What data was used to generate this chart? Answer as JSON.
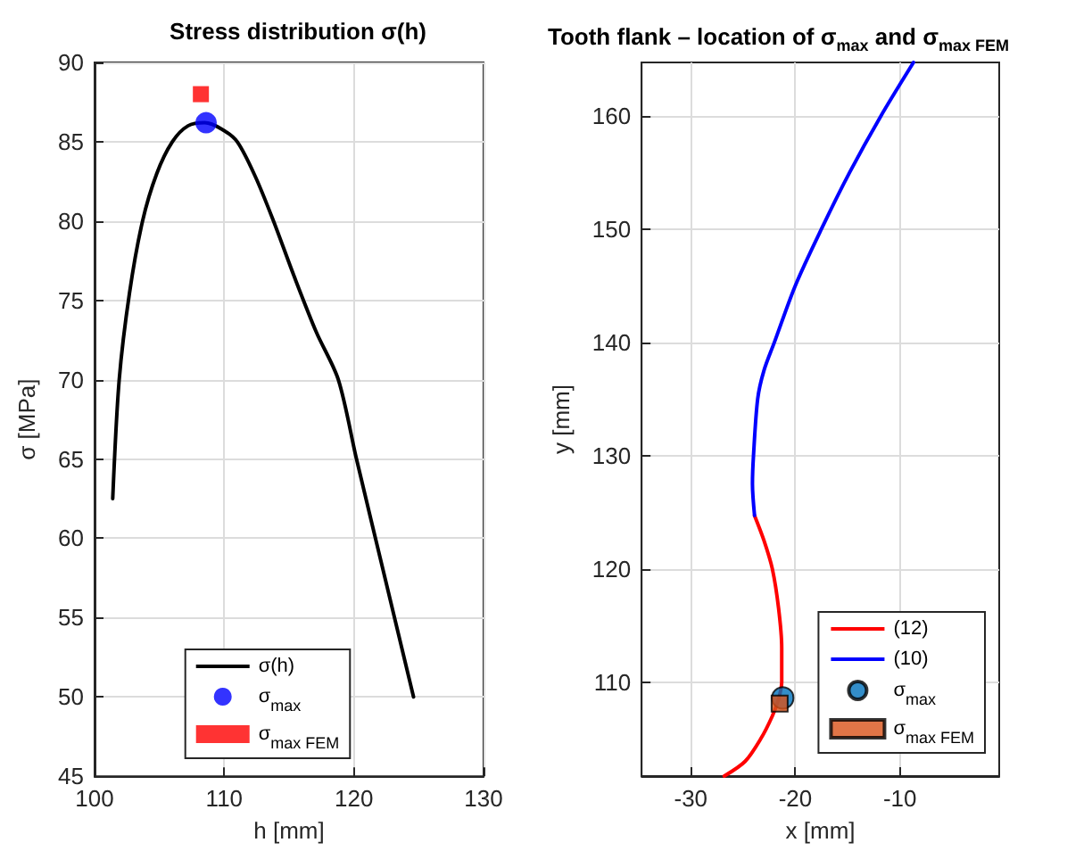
{
  "chart_data": [
    {
      "type": "line",
      "title": "Stress distribution σ(h)",
      "xlabel": "h [mm]",
      "ylabel": "σ [MPa]",
      "xlim": [
        100,
        130
      ],
      "xticks": [
        100,
        110,
        120,
        130
      ],
      "ylim": [
        45,
        90
      ],
      "yticks": [
        45,
        50,
        55,
        60,
        65,
        70,
        75,
        80,
        85,
        90
      ],
      "grid": true,
      "legend": "bottom",
      "series": [
        {
          "name": "σ(h)",
          "type": "line",
          "color": "#000000",
          "marker": "none",
          "line_style": "solid",
          "x": [
            101.4,
            101.9,
            102.7,
            103.7,
            104.8,
            106.0,
            107.2,
            108.5,
            109.8,
            111.0,
            112.4,
            113.8,
            115.4,
            117.1,
            118.8,
            120.2,
            122.4,
            124.6
          ],
          "values": [
            62.5,
            70,
            75.5,
            80,
            83,
            85,
            86,
            86.2,
            85.8,
            85,
            82.8,
            80,
            76.5,
            73,
            70,
            65,
            57.5,
            50
          ]
        },
        {
          "name": "σ$_{max}$",
          "type": "scatter",
          "color": "#0000ff",
          "marker": "circle",
          "x": [
            108.6
          ],
          "values": [
            86.2
          ]
        },
        {
          "name": "σ$_{max FEM}$",
          "type": "scatter",
          "color": "#ff0000",
          "marker": "square",
          "x": [
            108.2
          ],
          "values": [
            88.0
          ]
        }
      ]
    },
    {
      "type": "line",
      "title": "Tooth flank – location of σ$_{max}$ and σ$_{max FEM}$",
      "xlabel": "x [mm]",
      "ylabel": "y [mm]",
      "xlim": [
        -34.7,
        -0.5
      ],
      "xticks": [
        -30,
        -20,
        -10
      ],
      "ylim": [
        101.7,
        164.7
      ],
      "yticks": [
        110,
        120,
        130,
        140,
        150,
        160
      ],
      "grid": true,
      "legend": "bottom right",
      "series": [
        {
          "name": "(12)",
          "type": "line",
          "color": "#ff0000",
          "marker": "none",
          "line_style": "solid",
          "x": [
            -26.8,
            -24.8,
            -23.3,
            -22.2,
            -21.6,
            -21.3,
            -21.3,
            -21.6,
            -22.2,
            -23.0,
            -23.9
          ],
          "values": [
            101.7,
            103,
            105,
            107,
            108.5,
            110,
            113,
            116.5,
            120,
            122.5,
            124.7
          ]
        },
        {
          "name": "(10)",
          "type": "line",
          "color": "#0000ff",
          "marker": "none",
          "line_style": "solid",
          "x": [
            -23.9,
            -24.1,
            -24.0,
            -23.6,
            -23.0,
            -22.0,
            -20.0,
            -17.5,
            -14.8,
            -11.8,
            -8.7
          ],
          "values": [
            124.7,
            127.5,
            130,
            135,
            137.5,
            140,
            145,
            150,
            155,
            160,
            164.7
          ]
        },
        {
          "name": "σ$_{max}$",
          "type": "scatter",
          "color": "#0072bd",
          "marker": "circle",
          "x": [
            -21.2
          ],
          "values": [
            108.6
          ]
        },
        {
          "name": "σ$_{max FEM}$",
          "type": "scatter",
          "color": "#d95319",
          "marker": "square",
          "x": [
            -21.5
          ],
          "values": [
            108.1
          ]
        }
      ]
    }
  ]
}
